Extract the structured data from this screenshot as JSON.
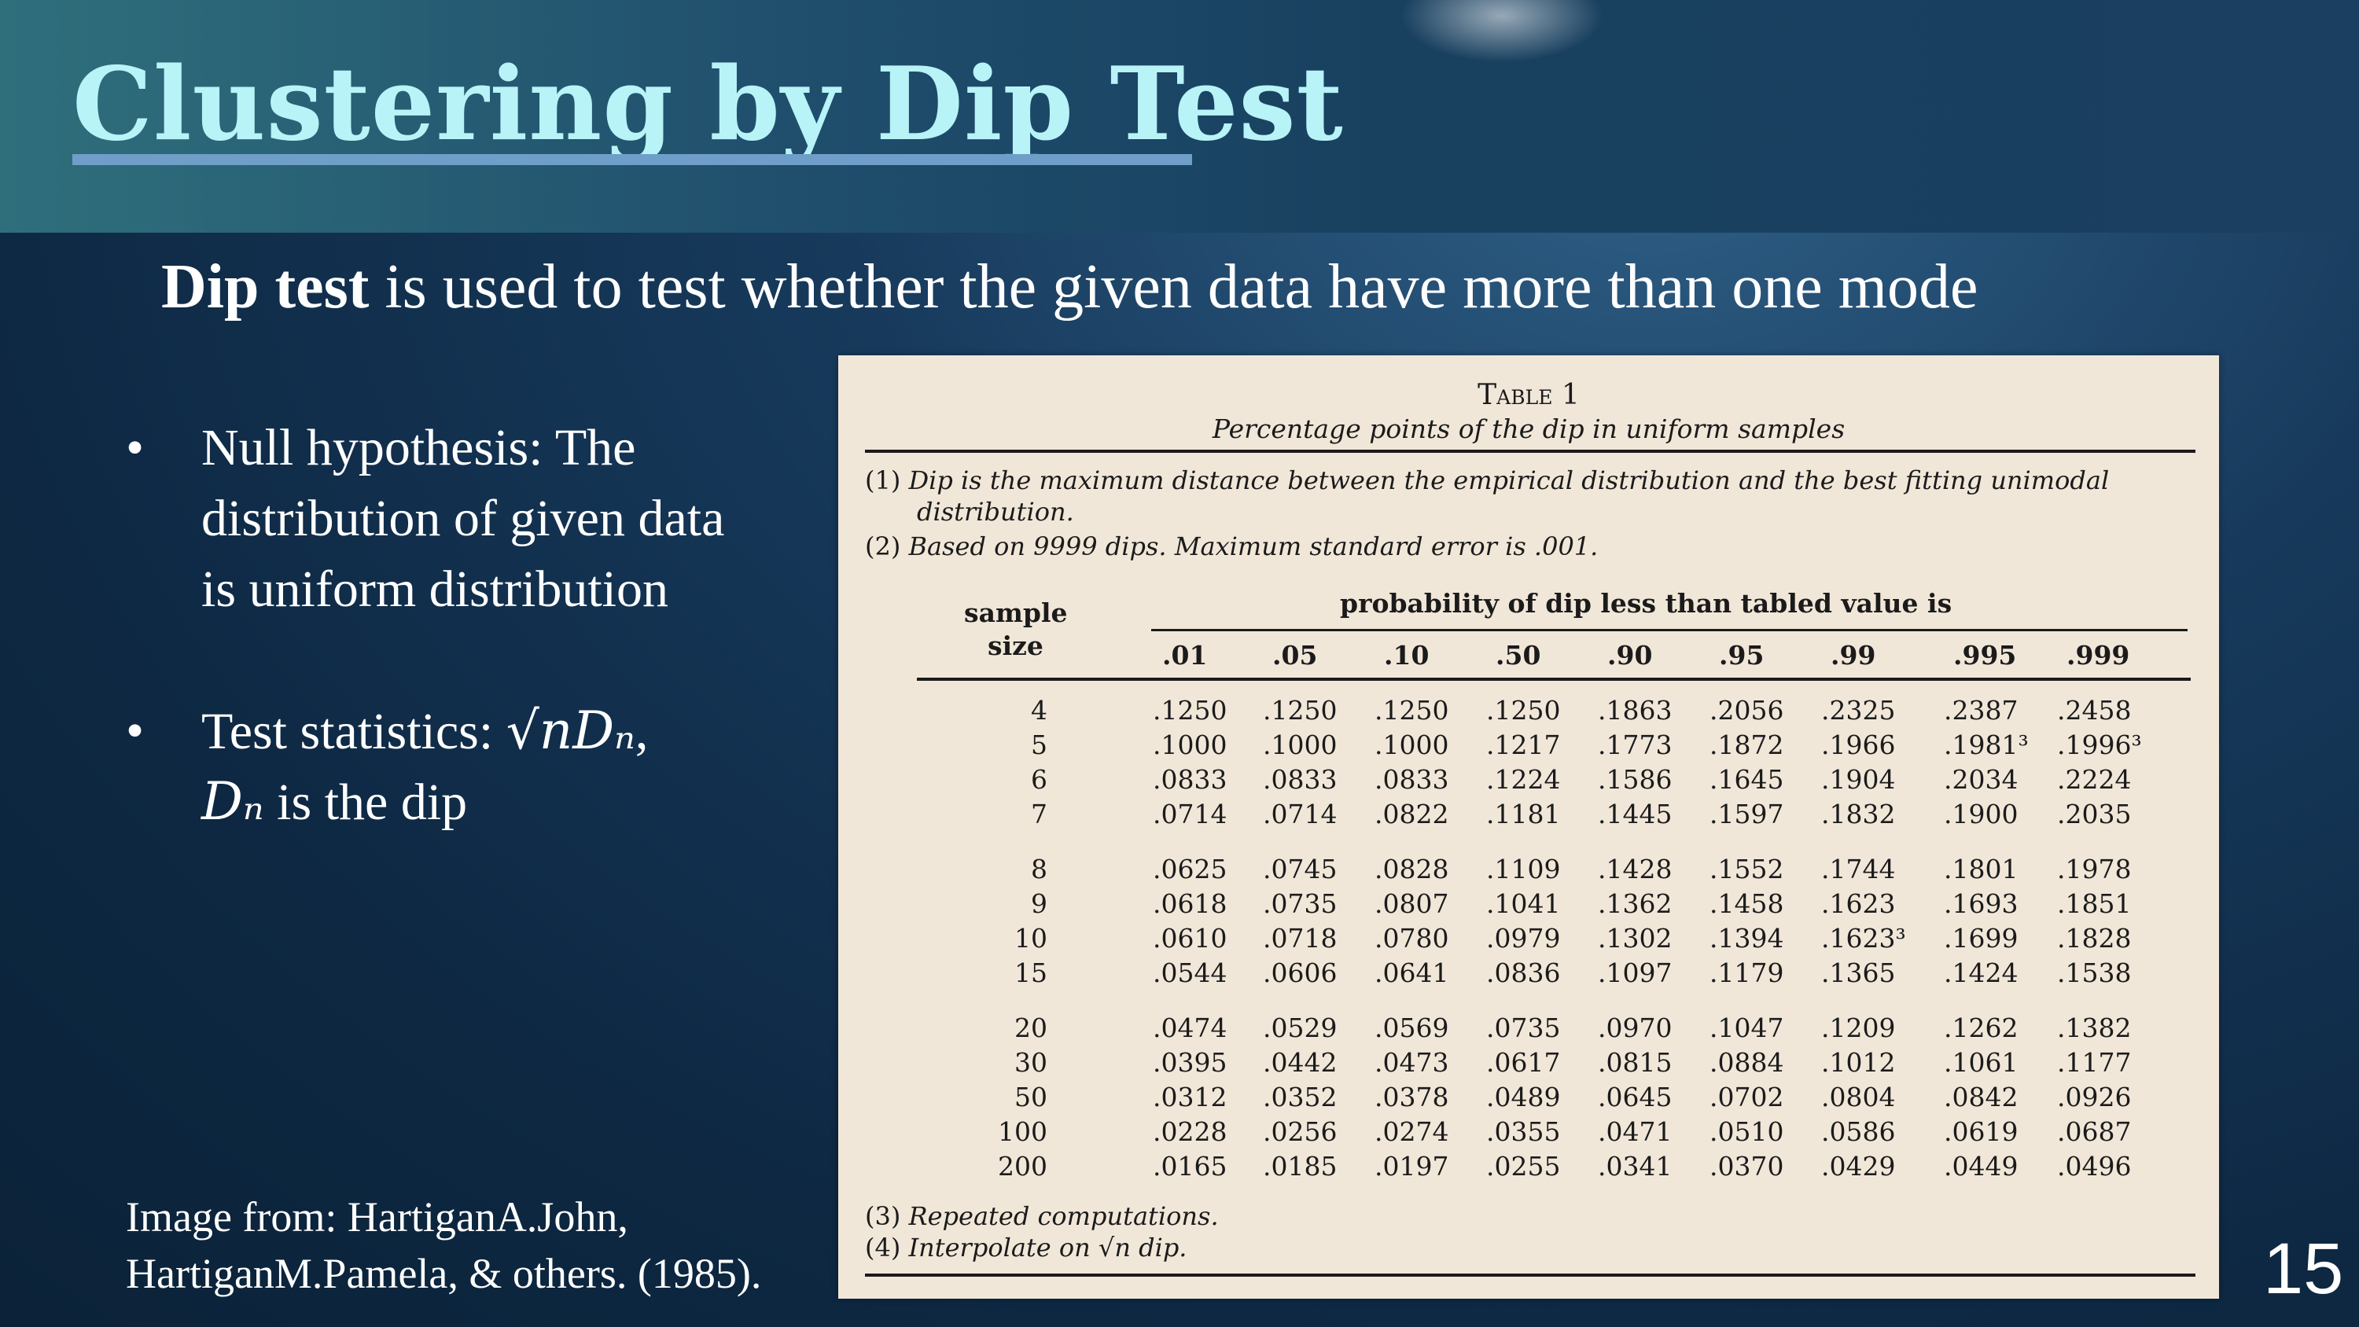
{
  "slide": {
    "title": "Clustering by Dip Test",
    "subtitle_bold": "Dip test",
    "subtitle_rest": " is used to test whether the given data have more than one mode",
    "bullets": [
      {
        "lines": [
          "Null hypothesis: The",
          "distribution of given data",
          "is uniform distribution"
        ]
      },
      {
        "line1_text": "Test statistics: ",
        "line1_math": "√nDₙ",
        "line1_tail": ",",
        "line2_math": "Dₙ",
        "line2_text": " is the dip"
      }
    ],
    "citation": [
      "Image from: HartiganA.John,",
      "HartiganM.Pamela, & others. (1985)."
    ],
    "page_number": "15"
  },
  "table": {
    "title": "Table 1",
    "subtitle": "Percentage points of the dip in uniform samples",
    "notes_top": [
      {
        "num": "(1)",
        "text": "Dip is the maximum distance between the empirical distribution and the best fitting unimodal"
      },
      {
        "num": "",
        "text": "distribution."
      },
      {
        "num": "(2)",
        "text": "Based on 9999 dips. Maximum standard error is .001."
      }
    ],
    "header_size": [
      "sample",
      "size"
    ],
    "header_prob": "probability of dip less than tabled value is",
    "columns": [
      ".01",
      ".05",
      ".10",
      ".50",
      ".90",
      ".95",
      ".99",
      ".995",
      ".999"
    ],
    "groups": [
      [
        {
          "size": "4",
          "values": [
            ".1250",
            ".1250",
            ".1250",
            ".1250",
            ".1863",
            ".2056",
            ".2325",
            ".2387",
            ".2458"
          ]
        },
        {
          "size": "5",
          "values": [
            ".1000",
            ".1000",
            ".1000",
            ".1217",
            ".1773",
            ".1872",
            ".1966",
            ".1981³",
            ".1996³"
          ]
        },
        {
          "size": "6",
          "values": [
            ".0833",
            ".0833",
            ".0833",
            ".1224",
            ".1586",
            ".1645",
            ".1904",
            ".2034",
            ".2224"
          ]
        },
        {
          "size": "7",
          "values": [
            ".0714",
            ".0714",
            ".0822",
            ".1181",
            ".1445",
            ".1597",
            ".1832",
            ".1900",
            ".2035"
          ]
        }
      ],
      [
        {
          "size": "8",
          "values": [
            ".0625",
            ".0745",
            ".0828",
            ".1109",
            ".1428",
            ".1552",
            ".1744",
            ".1801",
            ".1978"
          ]
        },
        {
          "size": "9",
          "values": [
            ".0618",
            ".0735",
            ".0807",
            ".1041",
            ".1362",
            ".1458",
            ".1623",
            ".1693",
            ".1851"
          ]
        },
        {
          "size": "10",
          "values": [
            ".0610",
            ".0718",
            ".0780",
            ".0979",
            ".1302",
            ".1394",
            ".1623³",
            ".1699",
            ".1828"
          ]
        },
        {
          "size": "15",
          "values": [
            ".0544",
            ".0606",
            ".0641",
            ".0836",
            ".1097",
            ".1179",
            ".1365",
            ".1424",
            ".1538"
          ]
        }
      ],
      [
        {
          "size": "20",
          "values": [
            ".0474",
            ".0529",
            ".0569",
            ".0735",
            ".0970",
            ".1047",
            ".1209",
            ".1262",
            ".1382"
          ]
        },
        {
          "size": "30",
          "values": [
            ".0395",
            ".0442",
            ".0473",
            ".0617",
            ".0815",
            ".0884",
            ".1012",
            ".1061",
            ".1177"
          ]
        },
        {
          "size": "50",
          "values": [
            ".0312",
            ".0352",
            ".0378",
            ".0489",
            ".0645",
            ".0702",
            ".0804",
            ".0842",
            ".0926"
          ]
        },
        {
          "size": "100",
          "values": [
            ".0228",
            ".0256",
            ".0274",
            ".0355",
            ".0471",
            ".0510",
            ".0586",
            ".0619",
            ".0687"
          ]
        },
        {
          "size": "200",
          "values": [
            ".0165",
            ".0185",
            ".0197",
            ".0255",
            ".0341",
            ".0370",
            ".0429",
            ".0449",
            ".0496"
          ]
        }
      ]
    ],
    "notes_bottom": [
      {
        "num": "(3)",
        "text": "Repeated computations."
      },
      {
        "num": "(4)",
        "text": "Interpolate on √n dip."
      }
    ]
  }
}
